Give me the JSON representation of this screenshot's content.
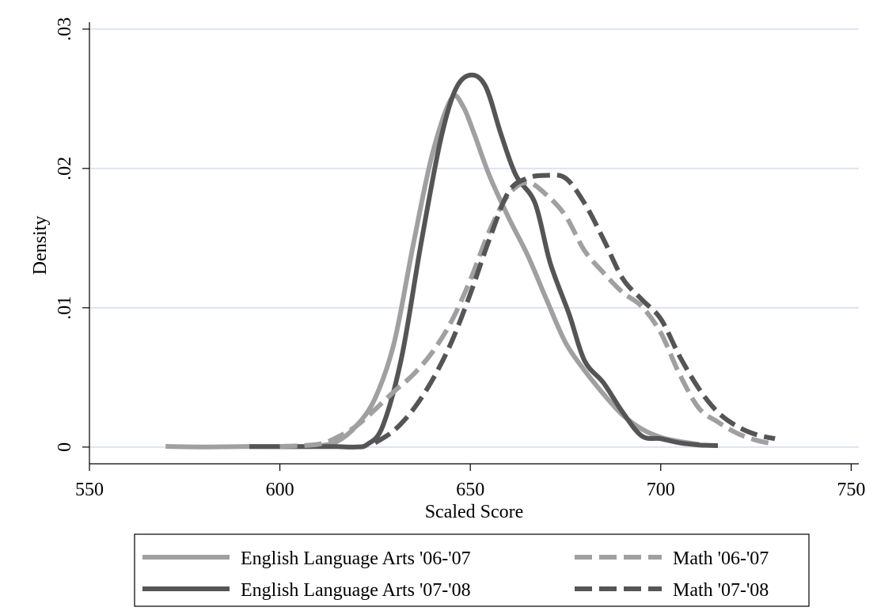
{
  "chart_data": {
    "type": "line",
    "xlabel": "Scaled Score",
    "ylabel": "Density",
    "xlim": [
      550,
      752
    ],
    "ylim": [
      -0.0012,
      0.0305
    ],
    "x_ticks": [
      550,
      600,
      650,
      700,
      750
    ],
    "x_tick_labels": [
      "550",
      "600",
      "650",
      "700",
      "750"
    ],
    "y_ticks": [
      0,
      0.01,
      0.02,
      0.03
    ],
    "y_tick_labels": [
      "0",
      ".01",
      ".02",
      ".03"
    ],
    "grid": true,
    "legend_position": "bottom",
    "series": [
      {
        "name": "English Language Arts '06-'07",
        "color": "#a0a0a0",
        "style": "solid",
        "points": [
          [
            570,
            5e-05
          ],
          [
            580,
            1e-05
          ],
          [
            590,
            4e-05
          ],
          [
            600,
            3e-05
          ],
          [
            605,
            3e-05
          ],
          [
            610,
            8e-05
          ],
          [
            615,
            0.0004
          ],
          [
            620,
            0.0015
          ],
          [
            625,
            0.0035
          ],
          [
            630,
            0.0075
          ],
          [
            635,
            0.0145
          ],
          [
            640,
            0.021
          ],
          [
            645,
            0.025
          ],
          [
            648,
            0.0245
          ],
          [
            651,
            0.0225
          ],
          [
            655,
            0.0195
          ],
          [
            660,
            0.0165
          ],
          [
            665,
            0.0138
          ],
          [
            670,
            0.0106
          ],
          [
            675,
            0.0075
          ],
          [
            680,
            0.0055
          ],
          [
            685,
            0.0038
          ],
          [
            690,
            0.0023
          ],
          [
            695,
            0.0013
          ],
          [
            700,
            0.0007
          ],
          [
            705,
            0.0004
          ],
          [
            710,
            0.0002
          ]
        ]
      },
      {
        "name": "English Language Arts '07-'08",
        "color": "#555555",
        "style": "solid",
        "points": [
          [
            592,
            4e-05
          ],
          [
            600,
            3e-05
          ],
          [
            610,
            4e-05
          ],
          [
            615,
            3e-05
          ],
          [
            620,
            1e-05
          ],
          [
            623,
            0.0002
          ],
          [
            627,
            0.0015
          ],
          [
            632,
            0.0065
          ],
          [
            637,
            0.0145
          ],
          [
            642,
            0.0218
          ],
          [
            646,
            0.0256
          ],
          [
            650,
            0.0267
          ],
          [
            654,
            0.0259
          ],
          [
            658,
            0.0225
          ],
          [
            662,
            0.0195
          ],
          [
            667,
            0.0175
          ],
          [
            671,
            0.0132
          ],
          [
            676,
            0.0095
          ],
          [
            680,
            0.0062
          ],
          [
            685,
            0.0046
          ],
          [
            690,
            0.0025
          ],
          [
            695,
            0.0008
          ],
          [
            700,
            0.0006
          ],
          [
            705,
            0.0003
          ],
          [
            710,
            0.00015
          ],
          [
            715,
            0.0001
          ]
        ]
      },
      {
        "name": "Math '06-'07",
        "color": "#a0a0a0",
        "style": "dashed",
        "points": [
          [
            600,
            4e-05
          ],
          [
            610,
            0.0002
          ],
          [
            615,
            0.0007
          ],
          [
            620,
            0.0015
          ],
          [
            625,
            0.0027
          ],
          [
            630,
            0.004
          ],
          [
            635,
            0.0052
          ],
          [
            640,
            0.0068
          ],
          [
            645,
            0.009
          ],
          [
            650,
            0.012
          ],
          [
            655,
            0.0155
          ],
          [
            660,
            0.0181
          ],
          [
            665,
            0.019
          ],
          [
            670,
            0.0181
          ],
          [
            675,
            0.0166
          ],
          [
            680,
            0.0141
          ],
          [
            685,
            0.0125
          ],
          [
            690,
            0.0111
          ],
          [
            695,
            0.0101
          ],
          [
            700,
            0.0082
          ],
          [
            705,
            0.0052
          ],
          [
            710,
            0.0028
          ],
          [
            715,
            0.0018
          ],
          [
            720,
            0.001
          ],
          [
            725,
            0.0005
          ],
          [
            730,
            0.0002
          ]
        ]
      },
      {
        "name": "Math '07-'08",
        "color": "#555555",
        "style": "dashed",
        "points": [
          [
            625,
            0.0003
          ],
          [
            630,
            0.0012
          ],
          [
            635,
            0.0027
          ],
          [
            640,
            0.0048
          ],
          [
            645,
            0.0075
          ],
          [
            650,
            0.011
          ],
          [
            655,
            0.0149
          ],
          [
            660,
            0.0183
          ],
          [
            665,
            0.0193
          ],
          [
            670,
            0.0195
          ],
          [
            675,
            0.0193
          ],
          [
            680,
            0.0175
          ],
          [
            685,
            0.0149
          ],
          [
            690,
            0.0121
          ],
          [
            695,
            0.0106
          ],
          [
            700,
            0.0092
          ],
          [
            705,
            0.0065
          ],
          [
            710,
            0.0042
          ],
          [
            715,
            0.0025
          ],
          [
            720,
            0.0015
          ],
          [
            725,
            0.0009
          ],
          [
            730,
            0.0006
          ]
        ]
      }
    ]
  }
}
